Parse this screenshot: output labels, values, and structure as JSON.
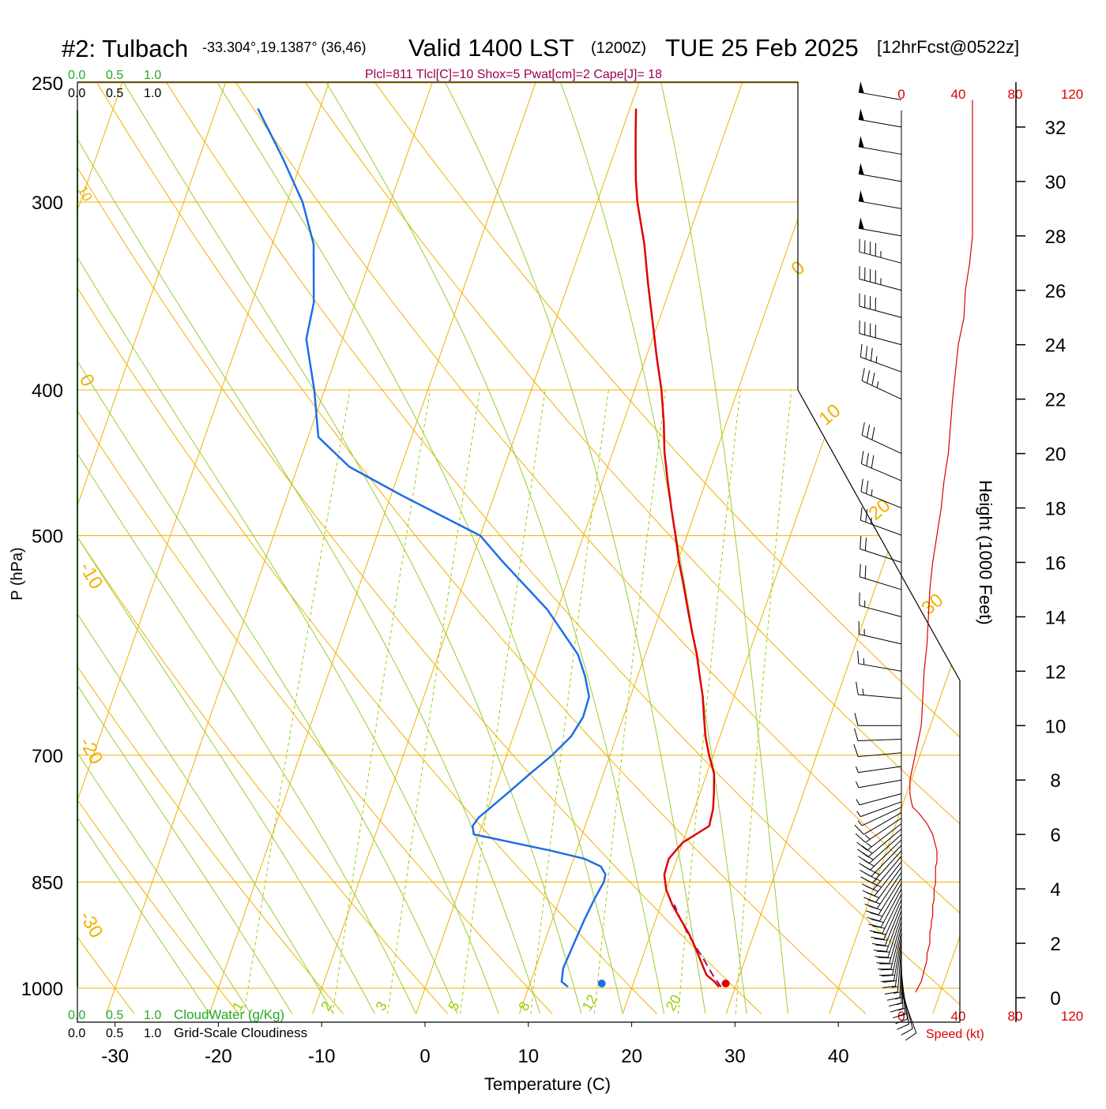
{
  "header": {
    "station": "#2: Tulbach",
    "coords": "-33.304°,19.1387° (36,46)",
    "valid": "Valid 1400 LST",
    "utc": "(1200Z)",
    "date": "TUE 25 Feb 2025",
    "forecast": "[12hrFcst@0522z]",
    "indices": "Plcl=811 Tlcl[C]=10 Shox=5 Pwat[cm]=2 Cape[J]= 18"
  },
  "colors": {
    "temperature": "#e00000",
    "dewpoint": "#1e6ee6",
    "parcel": "#8b1a6b",
    "isotherm_grid": "#f0b000",
    "mixing_ratio": "#99cc00",
    "moist_adiabat": "#99cc33",
    "cloud_water": "#22aa22",
    "speed_profile": "#dd0000",
    "wind_barb": "#000000",
    "text": "#000000",
    "indices_text": "#990055"
  },
  "axes": {
    "xlabel": "Temperature (C)",
    "ylabel": "P (hPa)",
    "height_label": "Height (1000 Feet)",
    "speed_label": "Speed (kt)",
    "x_ticks": [
      -30,
      -20,
      -10,
      0,
      10,
      20,
      30,
      40
    ],
    "p_ticks": [
      250,
      300,
      400,
      500,
      700,
      850,
      1000
    ],
    "height_ticks": [
      0,
      2,
      4,
      6,
      8,
      10,
      12,
      14,
      16,
      18,
      20,
      22,
      24,
      26,
      28,
      30,
      32
    ],
    "speed_ticks": [
      0,
      40,
      80,
      120
    ],
    "theta_labels": [
      -30,
      -20,
      -10,
      0,
      10,
      20,
      30
    ],
    "mixing_ratio_labels": [
      1,
      2,
      3,
      5,
      8,
      12,
      20
    ],
    "cloudiness_ticks": [
      "0.0",
      "0.5",
      "1.0"
    ],
    "cloud_water_label": "CloudWater (g/Kg)",
    "cloudiness_label": "Grid-Scale Cloudiness"
  },
  "chart_data": {
    "type": "line",
    "temperature": {
      "p": [
        998,
        990,
        980,
        960,
        940,
        920,
        900,
        880,
        860,
        840,
        820,
        800,
        790,
        780,
        760,
        740,
        720,
        700,
        680,
        660,
        640,
        620,
        600,
        580,
        560,
        540,
        520,
        500,
        480,
        460,
        440,
        420,
        400,
        380,
        360,
        340,
        320,
        300,
        290,
        280,
        270,
        260
      ],
      "t": [
        28.4,
        27.8,
        26.8,
        25.8,
        24.8,
        23.7,
        22.4,
        21.1,
        20.0,
        19.3,
        19.2,
        20.0,
        21.0,
        22.0,
        21.8,
        21.3,
        20.7,
        19.6,
        18.6,
        17.8,
        17.0,
        16.0,
        15.0,
        13.8,
        12.6,
        11.4,
        10.1,
        8.9,
        7.6,
        6.3,
        5.0,
        3.9,
        2.6,
        1.0,
        -0.6,
        -2.3,
        -4.0,
        -6.1,
        -7.0,
        -7.8,
        -8.6,
        -9.4
      ]
    },
    "dewpoint": {
      "p": [
        998,
        990,
        970,
        950,
        900,
        870,
        850,
        840,
        830,
        820,
        810,
        790,
        780,
        770,
        760,
        740,
        720,
        700,
        680,
        660,
        640,
        620,
        600,
        560,
        520,
        500,
        470,
        450,
        430,
        400,
        370,
        350,
        320,
        300,
        280,
        260
      ],
      "t": [
        13.8,
        13.0,
        12.7,
        12.8,
        13.1,
        13.4,
        13.7,
        13.6,
        12.9,
        11.0,
        7.5,
        -0.5,
        -0.9,
        -0.6,
        0.1,
        1.5,
        2.9,
        4.4,
        5.6,
        6.1,
        6.0,
        4.9,
        3.5,
        -1.0,
        -7.0,
        -10.0,
        -19.0,
        -25.0,
        -29.0,
        -31.0,
        -33.5,
        -34.0,
        -36.0,
        -38.5,
        -42.0,
        -46.0
      ]
    },
    "parcel": {
      "p": [
        998,
        980,
        960,
        940,
        920,
        900,
        880
      ],
      "t": [
        28.6,
        27.4,
        26.2,
        24.9,
        23.6,
        22.4,
        21.3
      ]
    },
    "surface": {
      "t": 29.1,
      "td": 17.1
    },
    "wind": {
      "height_kft": [
        0.2,
        0.4,
        0.6,
        0.8,
        1.0,
        1.2,
        1.4,
        1.6,
        1.8,
        2.0,
        2.2,
        2.4,
        2.6,
        2.8,
        3.0,
        3.2,
        3.4,
        3.6,
        3.8,
        4.0,
        4.2,
        4.4,
        4.6,
        4.8,
        5.0,
        5.2,
        5.4,
        5.6,
        5.8,
        6.0,
        6.2,
        6.4,
        6.6,
        6.8,
        7.0,
        7.2,
        7.5,
        8.0,
        8.5,
        9.0,
        9.5,
        10.0,
        11.0,
        12.0,
        13.0,
        14.0,
        15.0,
        16.0,
        17.0,
        18.0,
        19.0,
        20.0,
        22.0,
        23.0,
        24.0,
        25.0,
        26.0,
        27.0,
        28.0,
        29.0,
        30.0,
        31.0,
        32.0,
        33.0
      ],
      "dir": [
        160,
        165,
        170,
        172,
        175,
        178,
        180,
        182,
        185,
        188,
        190,
        192,
        194,
        196,
        198,
        200,
        202,
        204,
        206,
        208,
        210,
        212,
        214,
        216,
        218,
        220,
        222,
        224,
        226,
        228,
        230,
        232,
        236,
        240,
        245,
        250,
        255,
        260,
        262,
        265,
        268,
        270,
        275,
        280,
        283,
        285,
        287,
        288,
        290,
        292,
        293,
        295,
        295,
        290,
        285,
        285,
        285,
        285,
        280,
        280,
        280,
        280,
        280,
        280
      ],
      "speed": [
        10,
        12,
        14,
        15,
        16,
        17,
        18,
        18,
        19,
        20,
        20,
        20,
        21,
        21,
        22,
        22,
        22,
        23,
        23,
        23,
        24,
        24,
        24,
        24,
        25,
        25,
        25,
        24,
        23,
        22,
        20,
        18,
        15,
        12,
        8,
        7,
        6,
        6,
        8,
        10,
        12,
        14,
        15,
        16,
        18,
        19,
        20,
        22,
        25,
        28,
        30,
        33,
        36,
        38,
        40,
        44,
        45,
        48,
        50,
        50,
        50,
        50,
        50,
        50
      ]
    },
    "x_range": [
      -33,
      48
    ],
    "p_range": [
      250,
      1040
    ],
    "height_range_kft": [
      -1,
      34
    ],
    "speed_range": [
      0,
      120
    ],
    "grid": true
  }
}
